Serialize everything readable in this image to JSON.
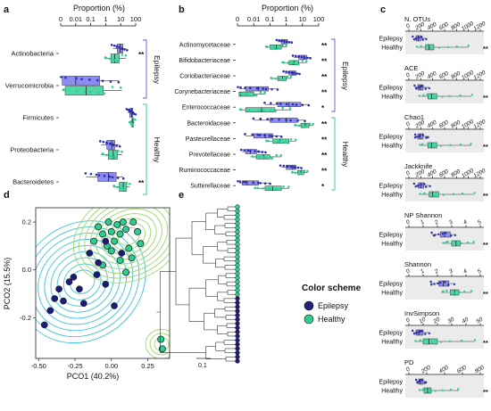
{
  "colors": {
    "epilepsy": "#5a5adc",
    "epilepsy_box": "#8c8cf0",
    "healthy": "#2ecc8f",
    "healthy_box": "#4dd9a6",
    "healthy_dark": "#1f8f5f",
    "sig": "#e0201b",
    "panel_bg": "#ebebeb",
    "contour_blue": "#3cc4d8",
    "contour_green": "#9bd96a"
  },
  "panel_a": {
    "letter": "a",
    "axis_title": "Proportion (%)",
    "ticks": [
      "0",
      "0.01",
      "0.1",
      "1",
      "10",
      "100"
    ],
    "tick_values": [
      0,
      0.01,
      0.1,
      1,
      10,
      100
    ],
    "groups": [
      {
        "label": "Epilepsy",
        "taxa": [
          {
            "name": "Actinobacteria",
            "epi": [
              3,
              6,
              9,
              14,
              24
            ],
            "hea": [
              0.8,
              2.2,
              4,
              8,
              22
            ],
            "sig": "**"
          },
          {
            "name": "Verrucomicrobia",
            "epi": [
              0.001,
              0.001,
              0.01,
              0.4,
              8
            ],
            "hea": [
              0.001,
              0.003,
              0.05,
              0.7,
              12
            ],
            "sig": ""
          }
        ]
      },
      {
        "label": "Healthy",
        "taxa": [
          {
            "name": "Firmicutes",
            "epi": [
              30,
              40,
              55,
              65,
              85
            ],
            "hea": [
              40,
              55,
              62,
              70,
              85
            ],
            "sig": ""
          },
          {
            "name": "Proteobacteria",
            "epi": [
              0.5,
              1.2,
              2.5,
              4,
              8
            ],
            "hea": [
              0.5,
              1.5,
              3.2,
              6,
              12
            ],
            "sig": ""
          },
          {
            "name": "Bacteroidetes",
            "epi": [
              0.05,
              0.3,
              1.5,
              5,
              15
            ],
            "hea": [
              3,
              8,
              15,
              25,
              40
            ],
            "sig": "**"
          }
        ]
      }
    ]
  },
  "panel_b": {
    "letter": "b",
    "axis_title": "Proportion (%)",
    "ticks": [
      "0",
      "0.01",
      "0.1",
      "1",
      "10",
      "100"
    ],
    "tick_values": [
      0,
      0.01,
      0.1,
      1,
      10,
      100
    ],
    "groups": [
      {
        "label": "Epilepsy",
        "taxa": [
          {
            "name": "Actinomycetaceae",
            "epi": [
              0.3,
              0.5,
              0.8,
              1.2,
              2
            ],
            "hea": [
              0.05,
              0.1,
              0.25,
              0.5,
              1
            ],
            "sig": "**"
          },
          {
            "name": "Bifidobacteriaceae",
            "epi": [
              3,
              6,
              12,
              18,
              28
            ],
            "hea": [
              0.5,
              1.5,
              3,
              6,
              18
            ],
            "sig": "**"
          },
          {
            "name": "Coriobacteriaceae",
            "epi": [
              0.8,
              1.5,
              2.5,
              4,
              6
            ],
            "hea": [
              0.1,
              0.3,
              0.6,
              1,
              2
            ],
            "sig": "**"
          },
          {
            "name": "Corynebacteriaceae",
            "epi": [
              0.001,
              0.005,
              0.02,
              0.08,
              0.3
            ],
            "hea": [
              0.001,
              0.001,
              0.002,
              0.01,
              0.05
            ],
            "sig": "**"
          },
          {
            "name": "Enterococcaceae",
            "epi": [
              0.05,
              0.3,
              1.5,
              8,
              25
            ],
            "hea": [
              0.001,
              0.005,
              0.03,
              0.2,
              2
            ],
            "sig": "*"
          }
        ]
      },
      {
        "label": "Healthy",
        "taxa": [
          {
            "name": "Bacteroidaceae",
            "epi": [
              0.01,
              0.1,
              1,
              5,
              15
            ],
            "hea": [
              3,
              8,
              15,
              25,
              45
            ],
            "sig": "**"
          },
          {
            "name": "Pasteurellaceae",
            "epi": [
              0.005,
              0.01,
              0.05,
              0.15,
              0.5
            ],
            "hea": [
              0.05,
              0.15,
              0.4,
              1.5,
              4
            ],
            "sig": "**"
          },
          {
            "name": "Prevotellaceae",
            "epi": [
              0.003,
              0.005,
              0.008,
              0.015,
              0.05
            ],
            "hea": [
              0.008,
              0.015,
              0.04,
              0.1,
              0.5
            ],
            "sig": "**"
          },
          {
            "name": "Ruminococcaceae",
            "epi": [
              0.5,
              1,
              2.5,
              4,
              8
            ],
            "hea": [
              2,
              5,
              8,
              12,
              20
            ],
            "sig": "**"
          },
          {
            "name": "Sutterellaceae",
            "epi": [
              0.001,
              0.003,
              0.006,
              0.02,
              0.1
            ],
            "hea": [
              0.01,
              0.05,
              0.15,
              0.5,
              1.5
            ],
            "sig": "*"
          }
        ]
      }
    ]
  },
  "panel_c": {
    "letter": "c",
    "group_labels": [
      "Epilepsy",
      "Healthy"
    ],
    "metrics": [
      {
        "name": "N. OTUs",
        "ticks": [
          0,
          200,
          400,
          600,
          800,
          1000,
          1200
        ],
        "min": 0,
        "max": 1200,
        "epi": [
          80,
          120,
          160,
          200,
          290
        ],
        "hea": [
          150,
          280,
          340,
          420,
          1000
        ],
        "sig": "**"
      },
      {
        "name": "ACE",
        "ticks": [
          0,
          200,
          400,
          600,
          800,
          1000,
          1200
        ],
        "min": 0,
        "max": 1200,
        "epi": [
          100,
          150,
          190,
          240,
          330
        ],
        "hea": [
          180,
          320,
          380,
          470,
          1050
        ],
        "sig": "**"
      },
      {
        "name": "Chao1",
        "ticks": [
          0,
          200,
          400,
          600,
          800,
          1000,
          1200
        ],
        "min": 0,
        "max": 1200,
        "epi": [
          100,
          150,
          190,
          240,
          330
        ],
        "hea": [
          180,
          320,
          380,
          470,
          1050
        ],
        "sig": "**"
      },
      {
        "name": "Jackknife",
        "ticks": [
          0,
          200,
          400,
          600,
          800,
          1000,
          1200
        ],
        "min": 0,
        "max": 1200,
        "epi": [
          100,
          160,
          200,
          250,
          350
        ],
        "hea": [
          200,
          340,
          400,
          500,
          1100
        ],
        "sig": "**"
      },
      {
        "name": "NP Shannon",
        "ticks": [
          0,
          1,
          2,
          3,
          4,
          5
        ],
        "min": 0,
        "max": 5,
        "epi": [
          1.6,
          2.2,
          2.5,
          2.9,
          3.3
        ],
        "hea": [
          2.4,
          3.0,
          3.3,
          3.6,
          4.6
        ],
        "sig": "**"
      },
      {
        "name": "Shannon",
        "ticks": [
          0,
          1,
          2,
          3,
          4,
          5
        ],
        "min": 0,
        "max": 5,
        "epi": [
          1.5,
          2.1,
          2.4,
          2.8,
          3.2
        ],
        "hea": [
          2.3,
          2.9,
          3.2,
          3.5,
          4.4
        ],
        "sig": "**"
      },
      {
        "name": "InvSimpson",
        "ticks": [
          0,
          10,
          20,
          30,
          40,
          50
        ],
        "min": 0,
        "max": 50,
        "epi": [
          3,
          5,
          7,
          10,
          14
        ],
        "hea": [
          5,
          10,
          14,
          20,
          46
        ],
        "sig": "**"
      },
      {
        "name": "PD",
        "ticks": [
          0,
          200,
          400,
          600,
          800
        ],
        "min": 0,
        "max": 800,
        "epi": [
          80,
          110,
          130,
          160,
          200
        ],
        "hea": [
          120,
          170,
          210,
          250,
          560
        ],
        "sig": "**"
      }
    ]
  },
  "panel_d": {
    "letter": "d",
    "xlabel": "PCO1 (40.2%)",
    "ylabel": "PCO2 (15.5%)",
    "x_ticks": [
      -0.5,
      -0.25,
      0.0,
      0.25
    ],
    "x_tick_labels": [
      "-0.50",
      "-0.25",
      "0.00",
      "0.25"
    ],
    "y_ticks": [
      -0.2,
      0.0,
      0.2
    ],
    "y_tick_labels": [
      "-0.2",
      "0.0",
      "0.2"
    ],
    "xlim": [
      -0.52,
      0.4
    ],
    "ylim": [
      -0.37,
      0.26
    ],
    "epilepsy_points": [
      [
        -0.46,
        -0.23
      ],
      [
        -0.42,
        -0.17
      ],
      [
        -0.39,
        -0.12
      ],
      [
        -0.36,
        -0.08
      ],
      [
        -0.33,
        -0.13
      ],
      [
        -0.29,
        -0.05
      ],
      [
        -0.26,
        -0.03
      ],
      [
        -0.22,
        -0.08
      ],
      [
        -0.19,
        -0.14
      ],
      [
        -0.15,
        0.07
      ],
      [
        -0.09,
        0.03
      ],
      [
        -0.04,
        0.12
      ],
      [
        -0.04,
        -0.06
      ],
      [
        0.02,
        -0.15
      ],
      [
        0.07,
        0.07
      ],
      [
        -0.1,
        -0.02
      ]
    ],
    "healthy_points": [
      [
        -0.09,
        0.18
      ],
      [
        -0.06,
        0.15
      ],
      [
        -0.02,
        0.2
      ],
      [
        0.0,
        0.16
      ],
      [
        0.02,
        0.12
      ],
      [
        0.04,
        0.19
      ],
      [
        0.06,
        0.15
      ],
      [
        0.08,
        0.2
      ],
      [
        0.1,
        0.17
      ],
      [
        0.12,
        0.09
      ],
      [
        0.15,
        0.2
      ],
      [
        0.18,
        0.16
      ],
      [
        0.2,
        0.11
      ],
      [
        0.14,
        0.05
      ],
      [
        0.06,
        0.04
      ],
      [
        0.0,
        0.08
      ],
      [
        -0.03,
        0.1
      ],
      [
        -0.12,
        0.12
      ],
      [
        0.34,
        -0.29
      ],
      [
        0.35,
        -0.33
      ],
      [
        -0.06,
        0.02
      ],
      [
        0.1,
        -0.01
      ]
    ],
    "contour_blue_center": [
      -0.2,
      -0.05
    ],
    "contour_green_center": [
      0.12,
      0.14
    ]
  },
  "panel_e": {
    "letter": "e",
    "scale_label": "0.1",
    "leaves_healthy": 22,
    "leaves_epilepsy": 16
  },
  "legend": {
    "title": "Color scheme",
    "items": [
      {
        "label": "Epilepsy",
        "group": "epilepsy"
      },
      {
        "label": "Healthy",
        "group": "healthy"
      }
    ]
  }
}
